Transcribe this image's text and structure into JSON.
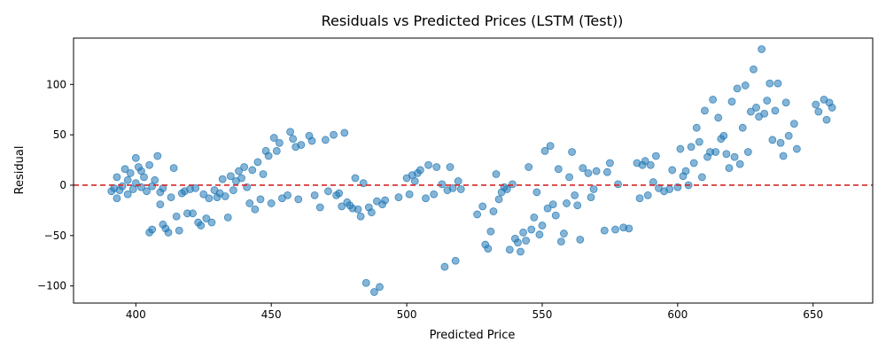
{
  "chart_data": {
    "type": "scatter",
    "title": "Residuals vs Predicted Prices (LSTM (Test))",
    "xlabel": "Predicted Price",
    "ylabel": "Residual",
    "xlim": [
      377,
      672
    ],
    "ylim": [
      -117,
      146
    ],
    "xticks": [
      400,
      450,
      500,
      550,
      600,
      650
    ],
    "yticks": [
      -100,
      -50,
      0,
      50,
      100
    ],
    "grid": false,
    "reference_line": {
      "y": 0,
      "color": "#d62728",
      "style": "dashed"
    },
    "point_color": "#1f77b4",
    "point_alpha": 0.55,
    "series": [
      {
        "points": [
          [
            391,
            -6
          ],
          [
            392,
            -3
          ],
          [
            393,
            8
          ],
          [
            393,
            -13
          ],
          [
            394,
            -5
          ],
          [
            395,
            -1
          ],
          [
            396,
            16
          ],
          [
            397,
            5
          ],
          [
            397,
            -9
          ],
          [
            398,
            12
          ],
          [
            399,
            -4
          ],
          [
            400,
            2
          ],
          [
            400,
            27
          ],
          [
            401,
            18
          ],
          [
            402,
            -2
          ],
          [
            402,
            14
          ],
          [
            403,
            8
          ],
          [
            404,
            -6
          ],
          [
            405,
            20
          ],
          [
            405,
            -47
          ],
          [
            406,
            -44
          ],
          [
            406,
            -1
          ],
          [
            407,
            5
          ],
          [
            408,
            29
          ],
          [
            409,
            -7
          ],
          [
            409,
            -19
          ],
          [
            410,
            -39
          ],
          [
            410,
            -3
          ],
          [
            411,
            -43
          ],
          [
            412,
            -47
          ],
          [
            413,
            -12
          ],
          [
            414,
            17
          ],
          [
            415,
            -31
          ],
          [
            416,
            -45
          ],
          [
            417,
            -8
          ],
          [
            418,
            -6
          ],
          [
            419,
            -28
          ],
          [
            420,
            -4
          ],
          [
            421,
            -28
          ],
          [
            422,
            -3
          ],
          [
            423,
            -37
          ],
          [
            424,
            -40
          ],
          [
            425,
            -9
          ],
          [
            426,
            -33
          ],
          [
            427,
            -13
          ],
          [
            428,
            -37
          ],
          [
            429,
            -5
          ],
          [
            430,
            -12
          ],
          [
            431,
            -8
          ],
          [
            432,
            6
          ],
          [
            433,
            -11
          ],
          [
            434,
            -32
          ],
          [
            435,
            9
          ],
          [
            436,
            -5
          ],
          [
            437,
            4
          ],
          [
            438,
            14
          ],
          [
            439,
            7
          ],
          [
            440,
            18
          ],
          [
            441,
            -2
          ],
          [
            442,
            -18
          ],
          [
            443,
            15
          ],
          [
            444,
            -24
          ],
          [
            445,
            23
          ],
          [
            446,
            -14
          ],
          [
            447,
            11
          ],
          [
            448,
            34
          ],
          [
            449,
            29
          ],
          [
            450,
            -18
          ],
          [
            451,
            47
          ],
          [
            452,
            34
          ],
          [
            453,
            42
          ],
          [
            454,
            -13
          ],
          [
            456,
            -10
          ],
          [
            457,
            53
          ],
          [
            458,
            46
          ],
          [
            459,
            38
          ],
          [
            460,
            -14
          ],
          [
            461,
            40
          ],
          [
            464,
            49
          ],
          [
            465,
            44
          ],
          [
            466,
            -10
          ],
          [
            468,
            -22
          ],
          [
            470,
            45
          ],
          [
            471,
            -6
          ],
          [
            473,
            50
          ],
          [
            474,
            -10
          ],
          [
            475,
            -8
          ],
          [
            476,
            -21
          ],
          [
            477,
            52
          ],
          [
            478,
            -17
          ],
          [
            479,
            -20
          ],
          [
            480,
            -23
          ],
          [
            481,
            7
          ],
          [
            482,
            -24
          ],
          [
            483,
            -31
          ],
          [
            484,
            2
          ],
          [
            485,
            -97
          ],
          [
            486,
            -22
          ],
          [
            487,
            -27
          ],
          [
            488,
            -106
          ],
          [
            489,
            -16
          ],
          [
            490,
            -101
          ],
          [
            491,
            -19
          ],
          [
            492,
            -15
          ],
          [
            497,
            -12
          ],
          [
            500,
            7
          ],
          [
            501,
            -9
          ],
          [
            502,
            10
          ],
          [
            503,
            4
          ],
          [
            504,
            12
          ],
          [
            505,
            15
          ],
          [
            507,
            -13
          ],
          [
            508,
            20
          ],
          [
            510,
            -9
          ],
          [
            511,
            18
          ],
          [
            513,
            1
          ],
          [
            514,
            -81
          ],
          [
            515,
            -5
          ],
          [
            516,
            18
          ],
          [
            517,
            -3
          ],
          [
            518,
            -75
          ],
          [
            519,
            4
          ],
          [
            520,
            -4
          ],
          [
            526,
            -29
          ],
          [
            528,
            -21
          ],
          [
            529,
            -59
          ],
          [
            530,
            -63
          ],
          [
            531,
            -46
          ],
          [
            532,
            -26
          ],
          [
            533,
            11
          ],
          [
            534,
            -14
          ],
          [
            535,
            -7
          ],
          [
            536,
            -2
          ],
          [
            537,
            -4
          ],
          [
            538,
            -64
          ],
          [
            539,
            1
          ],
          [
            540,
            -53
          ],
          [
            541,
            -57
          ],
          [
            542,
            -66
          ],
          [
            543,
            -47
          ],
          [
            544,
            -55
          ],
          [
            545,
            18
          ],
          [
            546,
            -44
          ],
          [
            547,
            -32
          ],
          [
            548,
            -7
          ],
          [
            549,
            -49
          ],
          [
            550,
            -40
          ],
          [
            551,
            34
          ],
          [
            552,
            -23
          ],
          [
            553,
            39
          ],
          [
            554,
            -19
          ],
          [
            555,
            -30
          ],
          [
            556,
            16
          ],
          [
            557,
            -56
          ],
          [
            558,
            -48
          ],
          [
            559,
            -18
          ],
          [
            560,
            8
          ],
          [
            561,
            33
          ],
          [
            562,
            -10
          ],
          [
            563,
            -20
          ],
          [
            564,
            -54
          ],
          [
            565,
            17
          ],
          [
            567,
            12
          ],
          [
            568,
            -12
          ],
          [
            569,
            -4
          ],
          [
            570,
            14
          ],
          [
            573,
            -45
          ],
          [
            574,
            13
          ],
          [
            575,
            22
          ],
          [
            577,
            -44
          ],
          [
            578,
            1
          ],
          [
            580,
            -42
          ],
          [
            582,
            -43
          ],
          [
            585,
            22
          ],
          [
            586,
            -13
          ],
          [
            587,
            20
          ],
          [
            588,
            24
          ],
          [
            589,
            -10
          ],
          [
            590,
            20
          ],
          [
            591,
            3
          ],
          [
            592,
            29
          ],
          [
            593,
            -3
          ],
          [
            595,
            -6
          ],
          [
            597,
            -4
          ],
          [
            598,
            15
          ],
          [
            600,
            -2
          ],
          [
            601,
            36
          ],
          [
            602,
            9
          ],
          [
            603,
            14
          ],
          [
            604,
            0
          ],
          [
            605,
            38
          ],
          [
            606,
            22
          ],
          [
            607,
            57
          ],
          [
            608,
            43
          ],
          [
            609,
            8
          ],
          [
            610,
            74
          ],
          [
            611,
            28
          ],
          [
            612,
            33
          ],
          [
            613,
            85
          ],
          [
            614,
            33
          ],
          [
            615,
            67
          ],
          [
            616,
            46
          ],
          [
            617,
            49
          ],
          [
            618,
            31
          ],
          [
            619,
            17
          ],
          [
            620,
            83
          ],
          [
            621,
            28
          ],
          [
            622,
            96
          ],
          [
            623,
            21
          ],
          [
            624,
            57
          ],
          [
            625,
            99
          ],
          [
            626,
            33
          ],
          [
            627,
            73
          ],
          [
            628,
            115
          ],
          [
            629,
            77
          ],
          [
            630,
            68
          ],
          [
            631,
            135
          ],
          [
            632,
            71
          ],
          [
            633,
            84
          ],
          [
            634,
            101
          ],
          [
            635,
            45
          ],
          [
            636,
            74
          ],
          [
            637,
            101
          ],
          [
            638,
            42
          ],
          [
            639,
            29
          ],
          [
            640,
            82
          ],
          [
            641,
            49
          ],
          [
            643,
            61
          ],
          [
            644,
            36
          ],
          [
            651,
            80
          ],
          [
            652,
            73
          ],
          [
            654,
            85
          ],
          [
            655,
            65
          ],
          [
            656,
            82
          ],
          [
            657,
            77
          ]
        ]
      }
    ]
  }
}
